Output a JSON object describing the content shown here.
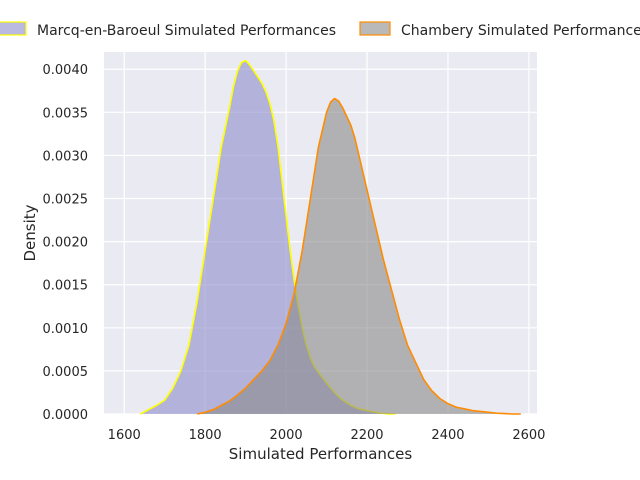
{
  "chart_data": {
    "type": "area",
    "xlabel": "Simulated Performances",
    "ylabel": "Density",
    "xlim": [
      1550,
      2620
    ],
    "ylim": [
      0,
      0.0042
    ],
    "x_ticks": [
      1600,
      1800,
      2000,
      2200,
      2400,
      2600
    ],
    "y_ticks": [
      0.0,
      0.0005,
      0.001,
      0.0015,
      0.002,
      0.0025,
      0.003,
      0.0035,
      0.004
    ],
    "y_tick_labels": [
      "0.0000",
      "0.0005",
      "0.0010",
      "0.0015",
      "0.0020",
      "0.0025",
      "0.0030",
      "0.0035",
      "0.0040"
    ],
    "grid": true,
    "legend_position": "top",
    "series": [
      {
        "name": "Marcq-en-Baroeul Simulated Performances",
        "fill": "#8c8ccc",
        "edge": "#ffff00",
        "x": [
          1640,
          1660,
          1680,
          1700,
          1720,
          1740,
          1760,
          1780,
          1800,
          1820,
          1840,
          1860,
          1870,
          1880,
          1890,
          1900,
          1910,
          1920,
          1930,
          1940,
          1950,
          1960,
          1970,
          1980,
          1990,
          2000,
          2010,
          2020,
          2030,
          2040,
          2050,
          2060,
          2070,
          2080,
          2090,
          2100,
          2110,
          2120,
          2130,
          2140,
          2150,
          2160,
          2170,
          2180,
          2190,
          2200,
          2210,
          2220,
          2230,
          2240,
          2250,
          2260,
          2270
        ],
        "y": [
          0.0,
          5e-05,
          0.0001,
          0.00016,
          0.0003,
          0.0005,
          0.0008,
          0.0013,
          0.0019,
          0.0025,
          0.0031,
          0.00355,
          0.0038,
          0.00398,
          0.00408,
          0.0041,
          0.00405,
          0.00398,
          0.00391,
          0.00384,
          0.00374,
          0.0036,
          0.0034,
          0.0031,
          0.0027,
          0.0023,
          0.0019,
          0.00155,
          0.00125,
          0.001,
          0.0008,
          0.00065,
          0.00055,
          0.00048,
          0.00042,
          0.00036,
          0.0003,
          0.00025,
          0.0002,
          0.00016,
          0.00013,
          0.0001,
          8e-05,
          6e-05,
          5e-05,
          4e-05,
          3e-05,
          2e-05,
          1e-05,
          1e-05,
          0.0,
          0.0,
          0.0
        ]
      },
      {
        "name": "Chambery Simulated Performances",
        "fill": "#8a8a8a",
        "edge": "#ff8c00",
        "x": [
          1780,
          1800,
          1820,
          1840,
          1860,
          1880,
          1900,
          1920,
          1940,
          1960,
          1980,
          2000,
          2020,
          2040,
          2060,
          2080,
          2100,
          2110,
          2120,
          2130,
          2140,
          2150,
          2160,
          2170,
          2180,
          2190,
          2200,
          2220,
          2240,
          2260,
          2280,
          2300,
          2320,
          2340,
          2360,
          2380,
          2400,
          2420,
          2440,
          2460,
          2480,
          2500,
          2520,
          2540,
          2560,
          2580
        ],
        "y": [
          0.0,
          2e-05,
          5e-05,
          0.0001,
          0.00015,
          0.00022,
          0.0003,
          0.0004,
          0.0005,
          0.00062,
          0.0008,
          0.00105,
          0.0014,
          0.0019,
          0.0025,
          0.0031,
          0.0035,
          0.00362,
          0.00366,
          0.00363,
          0.00355,
          0.00345,
          0.00335,
          0.0032,
          0.003,
          0.0028,
          0.0026,
          0.0022,
          0.0018,
          0.00145,
          0.0011,
          0.0008,
          0.0006,
          0.0004,
          0.00027,
          0.00018,
          0.00012,
          8e-05,
          6e-05,
          4e-05,
          3e-05,
          2e-05,
          1e-05,
          5e-06,
          0.0,
          0.0
        ]
      }
    ]
  }
}
